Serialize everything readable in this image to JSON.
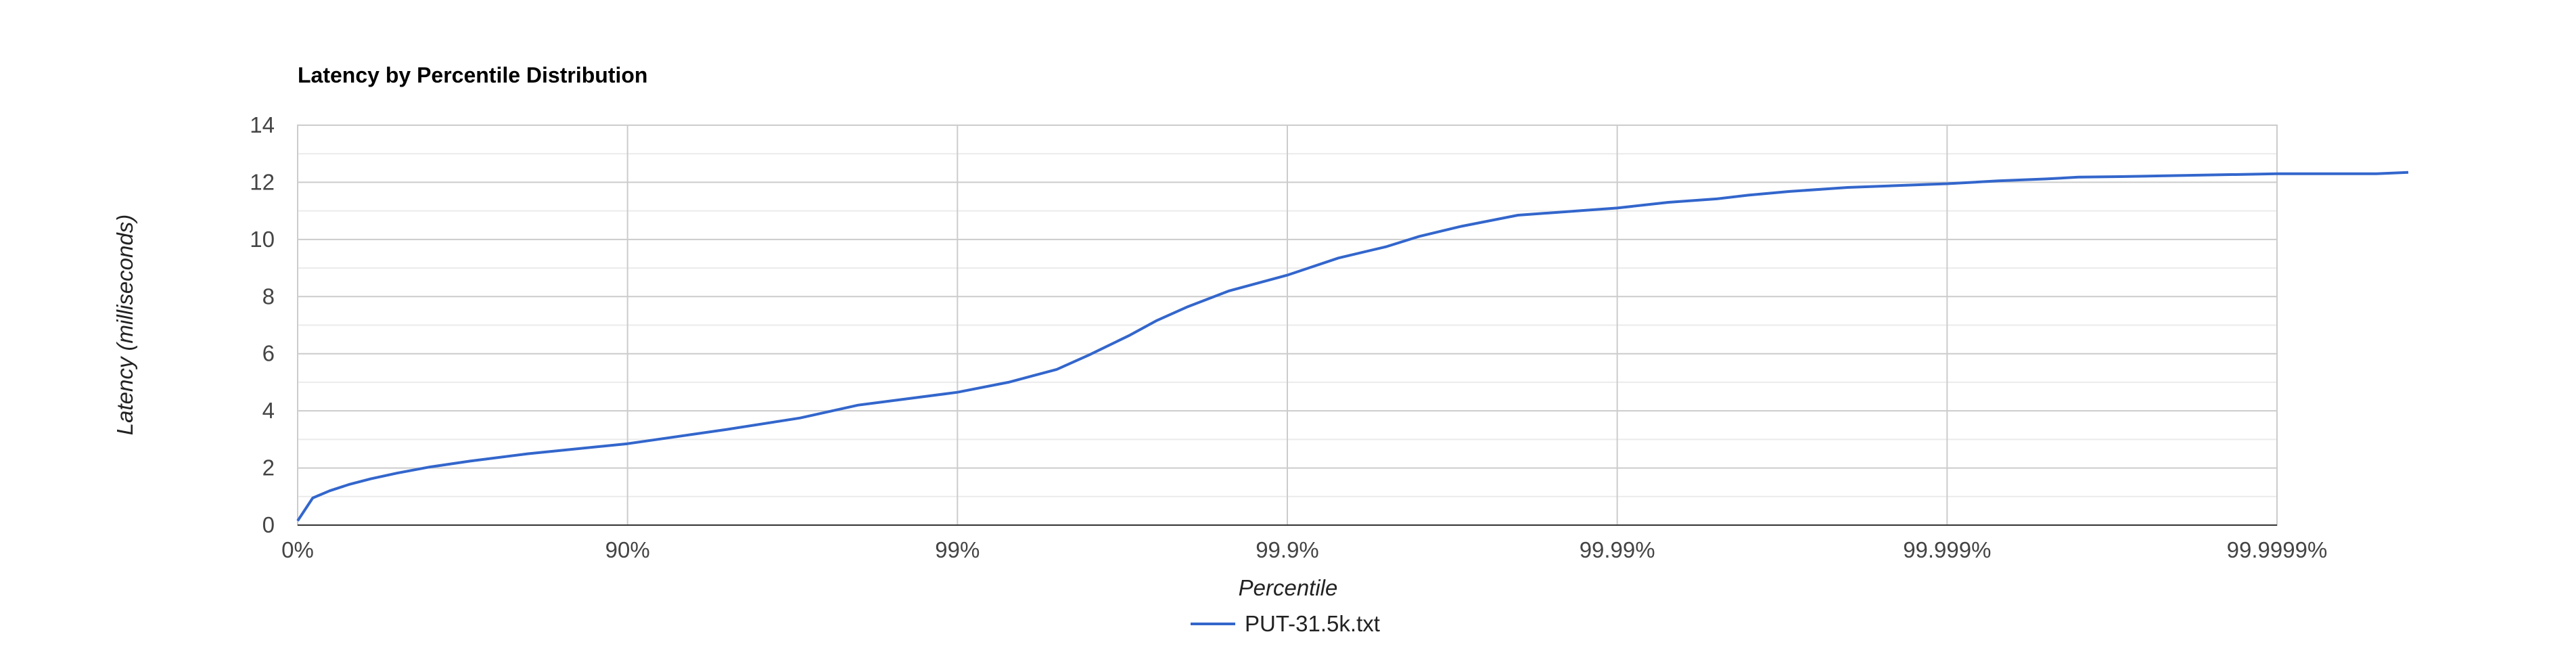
{
  "chart_data": {
    "type": "line",
    "title": "Latency by Percentile Distribution",
    "xlabel": "Percentile",
    "ylabel": "Latency (milliseconds)",
    "x_scale": "log-percentile",
    "x_ticks": [
      "0%",
      "90%",
      "99%",
      "99.9%",
      "99.99%",
      "99.999%",
      "99.9999%"
    ],
    "x_tick_values": [
      0,
      90,
      99,
      99.9,
      99.99,
      99.999,
      99.9999
    ],
    "y_ticks": [
      "0",
      "2",
      "4",
      "6",
      "8",
      "10",
      "12",
      "14"
    ],
    "ylim": [
      0,
      14
    ],
    "grid": true,
    "legend_position": "bottom",
    "series": [
      {
        "name": "PUT-31.5k.txt",
        "color": "#3366cc",
        "x": [
          0,
          10,
          20,
          30,
          40,
          50,
          60,
          70,
          80,
          90,
          95,
          97,
          98,
          99,
          99.3,
          99.5,
          99.6,
          99.7,
          99.75,
          99.8,
          99.85,
          99.9,
          99.93,
          99.95,
          99.96,
          99.97,
          99.98,
          99.99,
          99.993,
          99.995,
          99.996,
          99.997,
          99.998,
          99.999,
          99.9993,
          99.9995,
          99.9996,
          99.9997,
          99.9999,
          99.99993,
          99.99995,
          99.99996
        ],
        "y": [
          0.15,
          0.95,
          1.2,
          1.42,
          1.62,
          1.82,
          2.03,
          2.24,
          2.5,
          2.85,
          3.35,
          3.75,
          4.2,
          4.65,
          5.0,
          5.45,
          5.95,
          6.65,
          7.15,
          7.65,
          8.2,
          8.75,
          9.35,
          9.75,
          10.1,
          10.45,
          10.85,
          11.1,
          11.3,
          11.42,
          11.55,
          11.68,
          11.82,
          11.95,
          12.05,
          12.12,
          12.18,
          12.2,
          12.3,
          12.3,
          12.3,
          12.35
        ]
      }
    ]
  }
}
